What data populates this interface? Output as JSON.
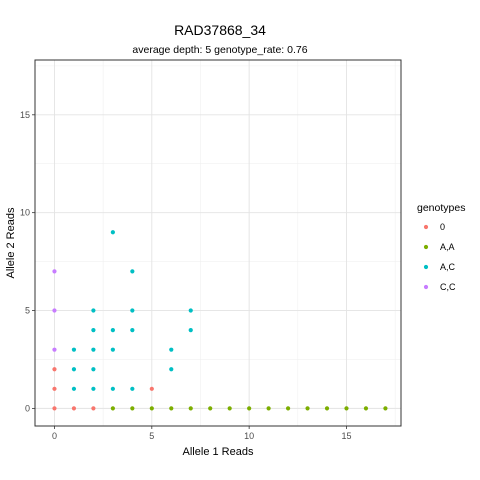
{
  "chart_data": {
    "type": "scatter",
    "title": "RAD37868_34",
    "subtitle": "average depth:  5  genotype_rate:  0.76",
    "xlabel": "Allele 1 Reads",
    "ylabel": "Allele 2 Reads",
    "xlim": [
      -1,
      17.8
    ],
    "ylim": [
      -0.9,
      17.8
    ],
    "x_ticks": [
      0,
      5,
      10,
      15
    ],
    "y_ticks": [
      0,
      5,
      10,
      15
    ],
    "x_tick_labels": [
      "0",
      "5",
      "10",
      "15"
    ],
    "y_tick_labels": [
      "0",
      "5",
      "10",
      "15"
    ],
    "grid": true,
    "legend": {
      "title": "genotypes",
      "position": "right"
    },
    "series": [
      {
        "name": "0",
        "color": "#F8766D",
        "points": [
          [
            0,
            0
          ],
          [
            0,
            1
          ],
          [
            0,
            2
          ],
          [
            1,
            0
          ],
          [
            2,
            0
          ],
          [
            5,
            1
          ]
        ]
      },
      {
        "name": "A,A",
        "color": "#7CAE00",
        "points": [
          [
            3,
            0
          ],
          [
            4,
            0
          ],
          [
            5,
            0
          ],
          [
            6,
            0
          ],
          [
            7,
            0
          ],
          [
            8,
            0
          ],
          [
            9,
            0
          ],
          [
            10,
            0
          ],
          [
            11,
            0
          ],
          [
            12,
            0
          ],
          [
            13,
            0
          ],
          [
            14,
            0
          ],
          [
            15,
            0
          ],
          [
            16,
            0
          ],
          [
            17,
            0
          ]
        ]
      },
      {
        "name": "A,C",
        "color": "#00BFC4",
        "points": [
          [
            1,
            1
          ],
          [
            1,
            2
          ],
          [
            1,
            3
          ],
          [
            2,
            1
          ],
          [
            2,
            2
          ],
          [
            2,
            3
          ],
          [
            2,
            4
          ],
          [
            2,
            5
          ],
          [
            3,
            1
          ],
          [
            3,
            3
          ],
          [
            3,
            4
          ],
          [
            3,
            9
          ],
          [
            4,
            1
          ],
          [
            4,
            4
          ],
          [
            4,
            5
          ],
          [
            4,
            7
          ],
          [
            6,
            2
          ],
          [
            6,
            3
          ],
          [
            7,
            4
          ],
          [
            7,
            5
          ]
        ]
      },
      {
        "name": "C,C",
        "color": "#C77CFF",
        "points": [
          [
            0,
            3
          ],
          [
            0,
            5
          ],
          [
            0,
            7
          ]
        ]
      }
    ]
  }
}
